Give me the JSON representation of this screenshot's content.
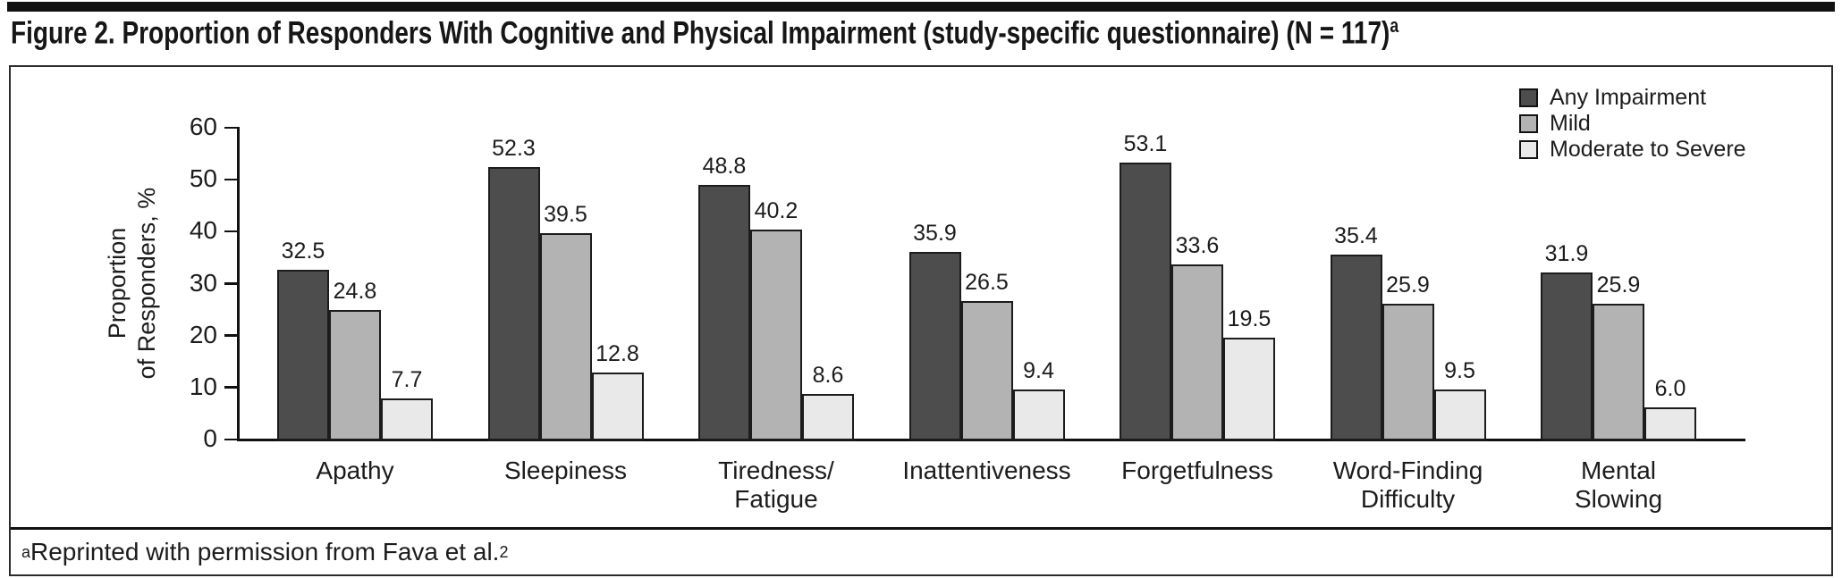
{
  "chart_data": {
    "type": "bar",
    "title": "Figure 2. Proportion of Responders With Cognitive and Physical Impairment (study-specific questionnaire) (N = 117)",
    "title_superscript": "a",
    "ylabel": "Proportion\nof Responders, %",
    "ylim": [
      0,
      60
    ],
    "yticks": [
      0,
      10,
      20,
      30,
      40,
      50,
      60
    ],
    "grid": false,
    "legend_position": "top-right",
    "bar_value_labels_shown": true,
    "categories": [
      "Apathy",
      "Sleepiness",
      "Tiredness/\nFatigue",
      "Inattentiveness",
      "Forgetfulness",
      "Word-Finding\nDifficulty",
      "Mental\nSlowing"
    ],
    "series": [
      {
        "name": "Any Impairment",
        "color": "#4d4d4d",
        "values": [
          32.5,
          52.3,
          48.8,
          35.9,
          53.1,
          35.4,
          31.9
        ]
      },
      {
        "name": "Mild",
        "color": "#b3b3b3",
        "values": [
          24.8,
          39.5,
          40.2,
          26.5,
          33.6,
          25.9,
          25.9
        ]
      },
      {
        "name": "Moderate to Severe",
        "color": "#e9e9e9",
        "values": [
          7.7,
          12.8,
          8.6,
          9.4,
          19.5,
          9.5,
          6.0
        ]
      }
    ]
  },
  "footnote": {
    "marker": "a",
    "text": "Reprinted with permission from Fava et al.",
    "reference": "2"
  }
}
